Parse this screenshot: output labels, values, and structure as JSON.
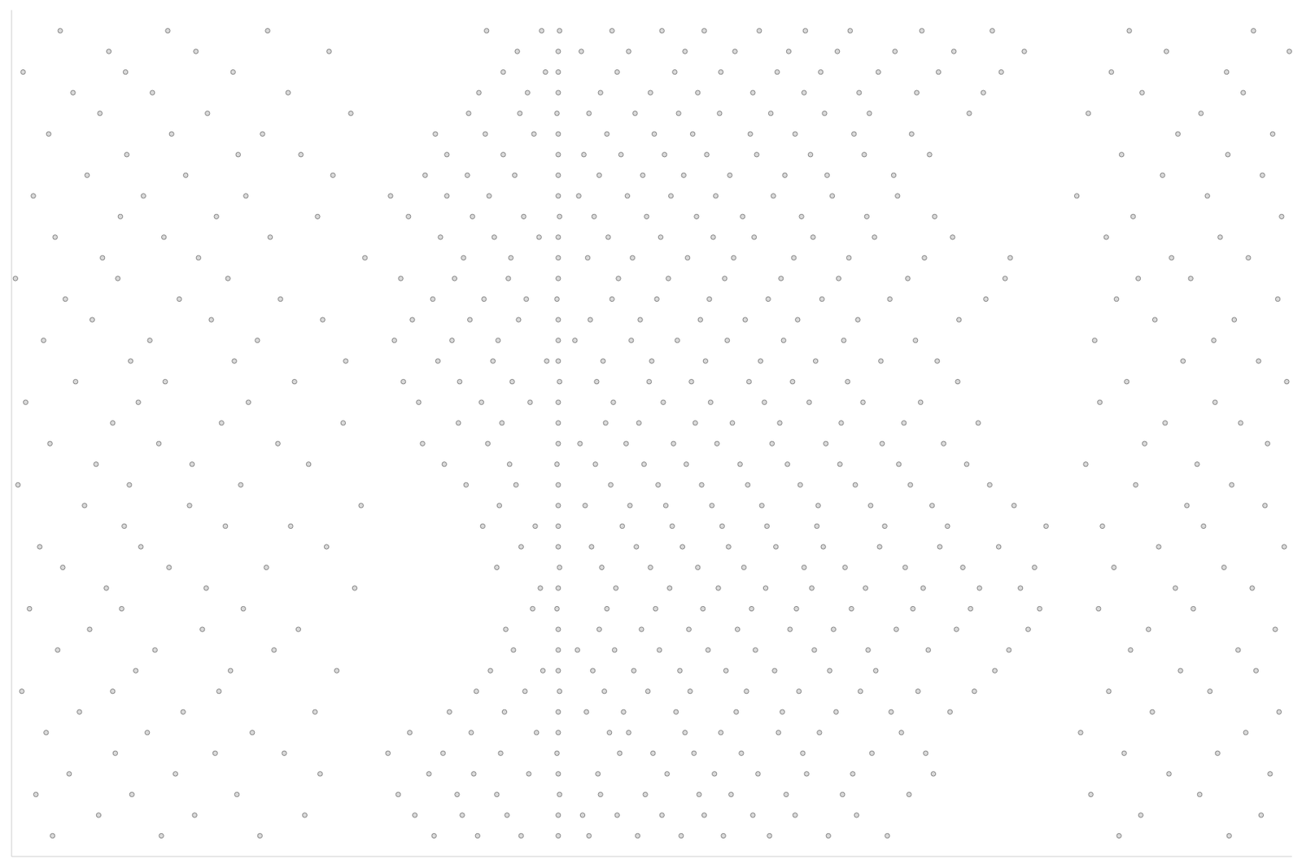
{
  "chart_data": {
    "type": "scatter",
    "color": "#808080",
    "marker": "circle",
    "tick_labels": false,
    "grid": false,
    "xlim": [
      0,
      100
    ],
    "ylim": [
      0,
      41
    ],
    "xticks": [],
    "yticks": [],
    "x": [
      3.2,
      11.7,
      19.4,
      86.5,
      95.1,
      33.0,
      36.4,
      39.8,
      42.7,
      45.1,
      48.9,
      52.3,
      55.6,
      59.2,
      63.8,
      68.4,
      6.8,
      14.3,
      22.9,
      88.2,
      97.6,
      31.5,
      35.2,
      38.7,
      42.7,
      44.6,
      47.3,
      50.8,
      54.1,
      57.9,
      61.2,
      66.0,
      1.9,
      9.4,
      17.6,
      84.3,
      92.8,
      30.2,
      34.8,
      37.9,
      42.8,
      46.0,
      49.5,
      53.7,
      56.2,
      60.5,
      64.9,
      70.1,
      4.5,
      12.8,
      24.1,
      90.4,
      98.3,
      32.6,
      36.1,
      40.4,
      42.7,
      45.8,
      51.2,
      54.9,
      58.3,
      62.1,
      65.7,
      72.0,
      8.1,
      15.9,
      21.3,
      86.9,
      94.2,
      29.4,
      33.7,
      38.2,
      42.6,
      47.5,
      50.1,
      53.3,
      57.0,
      61.8,
      67.2,
      71.4,
      2.7,
      10.6,
      18.8,
      83.5,
      96.4,
      31.1,
      35.9,
      41.0,
      42.7,
      46.7,
      48.2,
      52.6,
      55.4,
      59.9,
      63.1,
      69.5,
      5.3,
      13.4,
      23.7,
      89.1,
      99.0,
      34.2,
      38.5,
      42.7,
      44.9,
      47.8,
      51.9,
      56.6,
      60.2,
      64.4,
      68.7,
      73.3,
      0.8,
      7.9,
      16.2,
      85.7,
      93.6,
      36.3,
      40.1,
      42.8,
      46.3,
      49.7,
      53.0,
      57.4,
      61.5,
      66.3,
      70.8,
      75.2,
      9.7,
      17.1,
      25.4,
      91.3,
      97.2,
      37.4,
      41.5,
      42.7,
      45.4,
      48.6,
      52.2,
      55.8,
      59.6,
      63.9,
      67.5,
      76.8,
      3.6,
      11.2,
      20.5,
      87.4,
      95.8,
      39.2,
      42.7,
      44.2,
      47.1,
      50.6,
      54.4,
      58.1,
      62.7,
      66.9,
      71.6,
      77.9,
      6.1,
      14.9,
      22.4,
      88.8,
      98.7,
      38.6,
      42.7,
      45.9,
      49.2,
      52.9,
      56.7,
      60.8,
      64.2,
      69.1,
      73.8,
      79.4,
      1.4,
      8.6,
      18.1,
      84.9,
      92.3,
      40.7,
      42.6,
      46.5,
      50.3,
      54.0,
      57.8,
      61.3,
      65.6,
      70.4,
      74.9,
      80.3,
      7.4,
      15.2,
      26.8,
      90.9,
      96.9,
      41.3,
      42.7,
      47.2,
      51.4,
      55.2,
      58.9,
      62.5,
      66.7,
      71.2,
      75.6,
      78.8,
      4.0,
      12.3,
      19.9,
      86.1,
      94.7,
      37.9,
      42.8,
      46.1,
      49.9,
      53.6,
      57.2,
      61.9,
      65.1,
      69.8,
      74.3,
      79.9,
      2.2,
      10.1,
      24.6,
      89.6,
      99.4,
      39.8,
      42.7,
      45.3,
      48.8,
      52.4,
      56.0,
      59.7,
      63.4,
      67.8,
      72.5,
      77.1,
      8.8,
      16.7,
      21.8,
      85.2,
      93.1,
      36.8,
      40.9,
      42.7,
      47.7,
      51.6,
      55.5,
      59.0,
      62.9,
      68.2,
      73.1,
      80.8,
      5.7,
      13.9,
      27.3,
      91.8,
      97.9,
      38.1,
      42.7,
      44.8,
      48.3,
      51.1,
      54.7,
      58.6,
      63.0,
      67.1,
      71.9,
      78.3,
      0.5,
      9.2,
      17.9,
      87.8,
      95.3,
      35.5,
      39.4,
      42.7,
      46.8,
      50.5,
      53.9,
      57.5,
      61.6,
      65.9,
      70.2,
      76.4,
      6.6,
      14.1,
      23.2,
      83.9,
      92.6,
      33.8,
      38.9,
      42.6,
      45.6,
      49.4,
      52.7,
      56.9,
      60.6,
      64.7,
      69.3,
      74.6,
      3.0,
      11.5,
      20.8,
      88.5,
      98.1,
      32.1,
      37.2,
      42.7,
      44.4,
      48.0,
      51.7,
      55.1,
      59.4,
      63.6,
      68.0,
      72.8,
      7.9,
      16.4,
      25.9,
      90.1,
      96.0,
      34.9,
      38.3,
      42.7,
      46.4,
      49.0,
      53.4,
      56.3,
      60.0,
      64.8,
      69.7,
      75.5,
      1.1,
      9.9,
      18.5,
      85.0,
      94.0,
      31.8,
      36.7,
      40.5,
      42.7,
      47.0,
      50.9,
      54.6,
      58.8,
      62.3,
      66.5,
      71.0,
      5.0,
      12.0,
      22.1,
      87.1,
      99.6,
      30.6,
      35.0,
      39.1,
      42.8,
      45.7,
      49.8,
      53.1,
      57.6,
      61.0,
      65.3,
      73.9,
      9.3,
      17.4,
      26.1,
      91.5,
      97.4,
      33.3,
      37.6,
      41.8,
      42.7,
      46.2,
      50.0,
      54.2,
      58.5,
      62.8,
      67.9,
      72.3,
      2.5,
      10.8,
      19.2,
      84.6,
      93.9,
      29.9,
      34.4,
      38.0,
      42.7,
      44.0,
      48.4,
      52.0,
      55.9,
      60.3,
      65.0,
      70.6,
      6.3,
      15.6,
      24.3,
      89.3,
      95.5,
      31.3,
      35.8,
      39.6,
      42.7,
      45.2,
      49.1,
      53.8,
      57.3,
      61.4,
      66.1,
      74.0,
      4.2,
      13.1,
      21.0,
      86.3,
      98.9,
      32.9,
      36.9,
      40.2,
      42.6,
      46.9,
      50.4,
      54.5,
      59.1,
      63.3,
      68.6,
      76.1,
      0.3,
      8.3,
      16.9,
      88.0,
      92.1,
      30.4,
      34.6,
      38.8,
      42.7,
      47.4,
      51.3,
      55.7,
      60.1,
      64.6,
      70.0,
      77.6,
      7.1,
      14.6,
      27.6,
      90.6,
      96.6,
      35.3,
      39.0,
      42.7,
      45.0,
      48.5,
      52.8,
      56.4,
      61.1,
      65.4,
      71.3,
      78.0,
      3.4,
      11.9,
      20.2,
      85.5,
      94.4,
      33.5,
      37.7,
      41.2,
      42.7,
      46.6,
      50.7,
      54.8,
      58.0,
      62.6,
      67.4,
      73.5,
      8.5,
      16.0,
      23.9,
      87.6,
      99.2,
      31.0,
      36.0,
      40.0,
      42.8,
      45.5,
      49.6,
      53.5,
      57.1,
      61.7,
      66.8,
      72.1,
      1.7,
      10.3,
      18.3,
      83.2,
      93.4,
      29.6,
      34.0,
      37.3,
      42.7,
      44.3,
      48.1,
      51.5,
      55.0,
      59.5,
      64.1,
      69.2,
      5.9,
      13.6,
      25.1,
      89.9,
      97.7,
      32.3,
      35.6,
      39.3,
      42.7,
      45.9,
      49.3,
      52.5,
      56.1,
      60.4,
      63.7,
      68.9,
      9.0,
      17.7,
      22.6,
      86.7,
      95.0,
      34.0,
      38.4,
      42.7,
      44.7,
      47.6,
      51.0,
      54.3,
      58.2,
      62.4,
      66.6,
      71.7,
      2.9,
      12.5,
      19.6,
      91.1,
      98.5,
      33.1,
      37.0,
      40.8,
      42.7,
      46.5,
      50.2,
      53.2,
      57.7,
      61.2,
      65.8,
      70.3,
      6.9,
      15.3,
      26.5,
      84.1,
      92.9,
      35.7,
      39.7,
      42.6,
      45.1,
      48.7,
      52.1,
      55.3,
      59.3,
      63.5,
      67.0,
      74.8,
      4.8,
      11.0,
      21.6,
      88.3,
      96.2,
      36.5,
      40.3,
      42.7,
      46.0,
      49.9,
      53.6,
      57.9,
      61.9,
      66.2,
      70.7,
      75.9,
      0.9,
      8.9,
      17.3,
      85.9,
      94.9,
      38.4,
      41.7,
      42.7,
      47.3,
      51.8,
      55.4,
      59.8,
      63.2,
      67.7,
      72.4,
      77.3,
      7.6,
      14.4,
      24.8,
      90.2,
      99.8,
      39.5,
      42.7,
      44.5,
      48.2,
      52.6,
      56.5,
      60.7,
      64.5,
      69.0,
      73.6,
      79.1,
      3.8,
      12.2,
      20.0,
      87.3,
      97.0,
      37.1,
      41.4,
      42.8,
      46.9,
      50.8,
      54.1,
      58.4,
      62.0,
      65.5,
      71.1,
      76.6
    ],
    "values": [
      1,
      1,
      1,
      1,
      1,
      1,
      1,
      1,
      1,
      1,
      1,
      1,
      1,
      1,
      1,
      1,
      2,
      2,
      2,
      2,
      2,
      2,
      2,
      2,
      2,
      2,
      2,
      2,
      2,
      2,
      2,
      2,
      3,
      3,
      3,
      3,
      3,
      3,
      3,
      3,
      3,
      3,
      3,
      3,
      3,
      3,
      3,
      3,
      4,
      4,
      4,
      4,
      4,
      4,
      4,
      4,
      4,
      4,
      4,
      4,
      4,
      4,
      4,
      4,
      5,
      5,
      5,
      5,
      5,
      5,
      5,
      5,
      5,
      5,
      5,
      5,
      5,
      5,
      5,
      5,
      6,
      6,
      6,
      6,
      6,
      6,
      6,
      6,
      6,
      6,
      6,
      6,
      6,
      6,
      6,
      6,
      7,
      7,
      7,
      7,
      7,
      7,
      7,
      7,
      7,
      7,
      7,
      7,
      7,
      7,
      7,
      7,
      8,
      8,
      8,
      8,
      8,
      8,
      8,
      8,
      8,
      8,
      8,
      8,
      8,
      8,
      8,
      8,
      9,
      9,
      9,
      9,
      9,
      9,
      9,
      9,
      9,
      9,
      9,
      9,
      9,
      9,
      9,
      9,
      10,
      10,
      10,
      10,
      10,
      10,
      10,
      10,
      10,
      10,
      10,
      10,
      10,
      10,
      10,
      10,
      11,
      11,
      11,
      11,
      11,
      11,
      11,
      11,
      11,
      11,
      11,
      11,
      11,
      11,
      11,
      11,
      12,
      12,
      12,
      12,
      12,
      12,
      12,
      12,
      12,
      12,
      12,
      12,
      12,
      12,
      12,
      12,
      13,
      13,
      13,
      13,
      13,
      13,
      13,
      13,
      13,
      13,
      13,
      13,
      13,
      13,
      13,
      13,
      14,
      14,
      14,
      14,
      14,
      14,
      14,
      14,
      14,
      14,
      14,
      14,
      14,
      14,
      14,
      14,
      15,
      15,
      15,
      15,
      15,
      15,
      15,
      15,
      15,
      15,
      15,
      15,
      15,
      15,
      15,
      15,
      16,
      16,
      16,
      16,
      16,
      16,
      16,
      16,
      16,
      16,
      16,
      16,
      16,
      16,
      16,
      16,
      17,
      17,
      17,
      17,
      17,
      17,
      17,
      17,
      17,
      17,
      17,
      17,
      17,
      17,
      17,
      17,
      18,
      18,
      18,
      18,
      18,
      18,
      18,
      18,
      18,
      18,
      18,
      18,
      18,
      18,
      18,
      18,
      19,
      19,
      19,
      19,
      19,
      19,
      19,
      19,
      19,
      19,
      19,
      19,
      19,
      19,
      19,
      19,
      20,
      20,
      20,
      20,
      20,
      20,
      20,
      20,
      20,
      20,
      20,
      20,
      20,
      20,
      20,
      20,
      21,
      21,
      21,
      21,
      21,
      21,
      21,
      21,
      21,
      21,
      21,
      21,
      21,
      21,
      21,
      21,
      22,
      22,
      22,
      22,
      22,
      22,
      22,
      22,
      22,
      22,
      22,
      22,
      22,
      22,
      22,
      22,
      23,
      23,
      23,
      23,
      23,
      23,
      23,
      23,
      23,
      23,
      23,
      23,
      23,
      23,
      23,
      23,
      24,
      24,
      24,
      24,
      24,
      24,
      24,
      24,
      24,
      24,
      24,
      24,
      24,
      24,
      24,
      24,
      25,
      25,
      25,
      25,
      25,
      25,
      25,
      25,
      25,
      25,
      25,
      25,
      25,
      25,
      25,
      25,
      26,
      26,
      26,
      26,
      26,
      26,
      26,
      26,
      26,
      26,
      26,
      26,
      26,
      26,
      26,
      26,
      27,
      27,
      27,
      27,
      27,
      27,
      27,
      27,
      27,
      27,
      27,
      27,
      27,
      27,
      27,
      27,
      28,
      28,
      28,
      28,
      28,
      28,
      28,
      28,
      28,
      28,
      28,
      28,
      28,
      28,
      28,
      28,
      29,
      29,
      29,
      29,
      29,
      29,
      29,
      29,
      29,
      29,
      29,
      29,
      29,
      29,
      29,
      29,
      30,
      30,
      30,
      30,
      30,
      30,
      30,
      30,
      30,
      30,
      30,
      30,
      30,
      30,
      30,
      30,
      31,
      31,
      31,
      31,
      31,
      31,
      31,
      31,
      31,
      31,
      31,
      31,
      31,
      31,
      31,
      31,
      32,
      32,
      32,
      32,
      32,
      32,
      32,
      32,
      32,
      32,
      32,
      32,
      32,
      32,
      32,
      32,
      33,
      33,
      33,
      33,
      33,
      33,
      33,
      33,
      33,
      33,
      33,
      33,
      33,
      33,
      33,
      33,
      34,
      34,
      34,
      34,
      34,
      34,
      34,
      34,
      34,
      34,
      34,
      34,
      34,
      34,
      34,
      34,
      35,
      35,
      35,
      35,
      35,
      35,
      35,
      35,
      35,
      35,
      35,
      35,
      35,
      35,
      35,
      35,
      36,
      36,
      36,
      36,
      36,
      36,
      36,
      36,
      36,
      36,
      36,
      36,
      36,
      36,
      36,
      36,
      37,
      37,
      37,
      37,
      37,
      37,
      37,
      37,
      37,
      37,
      37,
      37,
      37,
      37,
      37,
      37,
      38,
      38,
      38,
      38,
      38,
      38,
      38,
      38,
      38,
      38,
      38,
      38,
      38,
      38,
      38,
      38,
      39,
      39,
      39,
      39,
      39,
      39,
      39,
      39,
      39,
      39,
      39,
      39,
      39,
      39,
      39,
      39,
      40,
      40,
      40,
      40,
      40,
      40,
      40,
      40,
      40,
      40,
      40,
      40,
      40,
      40,
      40,
      40
    ]
  }
}
